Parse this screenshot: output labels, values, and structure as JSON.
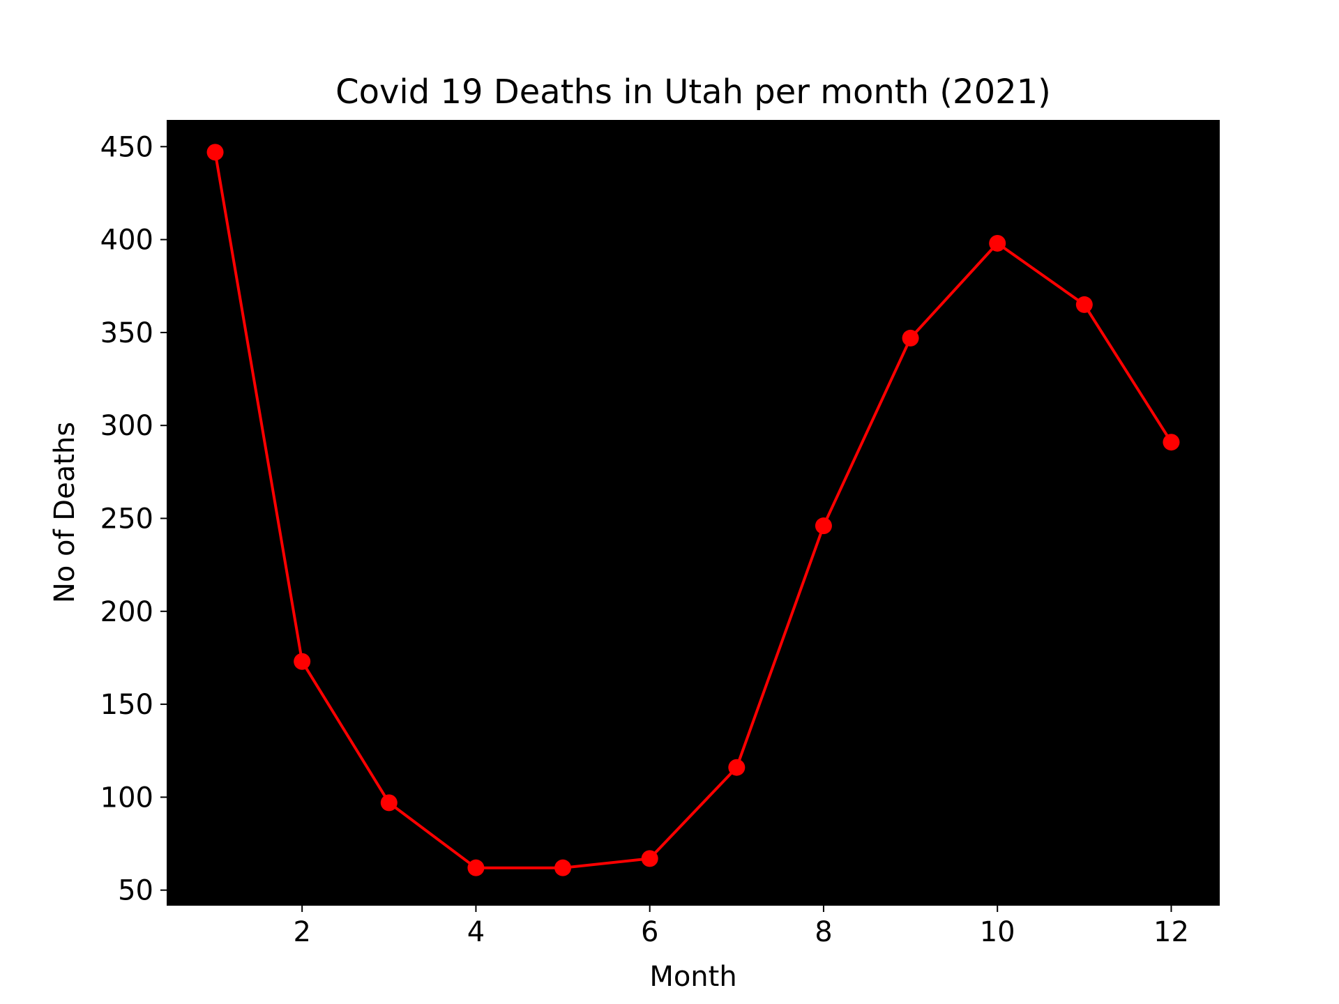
{
  "chart_data": {
    "type": "line",
    "title": "Covid 19 Deaths in Utah per month (2021)",
    "xlabel": "Month",
    "ylabel": "No of Deaths",
    "x": [
      1,
      2,
      3,
      4,
      5,
      6,
      7,
      8,
      9,
      10,
      11,
      12
    ],
    "series": [
      {
        "values": [
          447,
          173,
          97,
          62,
          62,
          67,
          116,
          246,
          347,
          398,
          365,
          291
        ]
      }
    ],
    "xlim": [
      0.45,
      12.55
    ],
    "ylim": [
      42,
      464
    ],
    "xticks": [
      2,
      4,
      6,
      8,
      10,
      12
    ],
    "yticks": [
      50,
      100,
      150,
      200,
      250,
      300,
      350,
      400,
      450
    ],
    "grid": false,
    "legend": "none",
    "colors": {
      "plot_background": "#000000",
      "line": "#ff0000",
      "marker": "#ff0000",
      "axes": "#000000",
      "page_background": "#ffffff"
    }
  }
}
